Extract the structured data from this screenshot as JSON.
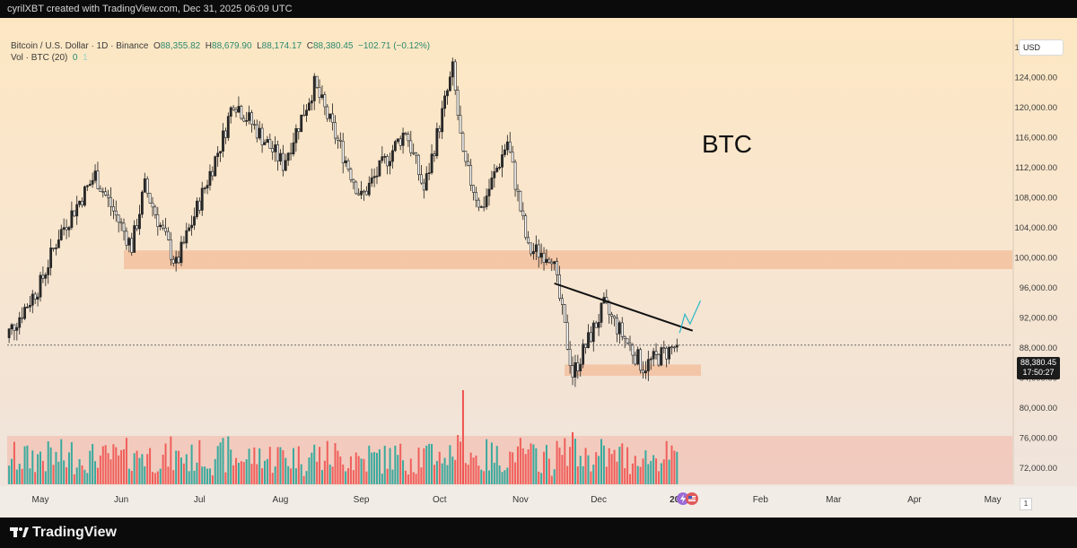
{
  "caption": "cyrilXBT created with TradingView.com, Dec 31, 2025 06:09 UTC",
  "legend": {
    "symbol_line": "Bitcoin / U.S. Dollar · 1D · Binance",
    "o_label": "O",
    "o_value": "88,355.82",
    "h_label": "H",
    "h_value": "88,679.90",
    "l_label": "L",
    "l_value": "88,174.17",
    "c_label": "C",
    "c_value": "88,380.45",
    "change": "−102.71 (−0.12%)",
    "vol_line": "Vol · BTC (20)",
    "vol_value": "0",
    "vol_value2": "1"
  },
  "currency": "USD",
  "annotation_text": "BTC",
  "last_price": {
    "price": "88,380.45",
    "timer": "17:50:27"
  },
  "scale_badge": "1",
  "brand": "TradingView",
  "colors": {
    "up": "#26a69a",
    "down": "#ef5350",
    "zone": "#f2b38c",
    "trendline": "#111111",
    "projection": "#29b6c8"
  },
  "icons": [
    "lightning-icon",
    "us-flag-icon",
    "tradingview-logo-icon"
  ],
  "chart_data": {
    "type": "candlestick",
    "title": "",
    "y_axis": {
      "ylim": [
        68000,
        129500
      ],
      "ticks": [
        72000,
        76000,
        80000,
        84000,
        88000,
        92000,
        96000,
        100000,
        104000,
        108000,
        112000,
        116000,
        120000,
        124000,
        128000
      ],
      "tick_labels": [
        "72,000.00",
        "76,000.00",
        "80,000.00",
        "84,000.00",
        "88,000.00",
        "92,000.00",
        "96,000.00",
        "100,000.00",
        "104,000.00",
        "108,000.00",
        "112,000.00",
        "116,000.00",
        "120,000.00",
        "124,000.00",
        "128,000.00"
      ]
    },
    "x_axis": {
      "ticks": [
        {
          "label": "May",
          "day": 0
        },
        {
          "label": "Jun",
          "day": 31
        },
        {
          "label": "Jul",
          "day": 61
        },
        {
          "label": "Aug",
          "day": 92
        },
        {
          "label": "Sep",
          "day": 123
        },
        {
          "label": "Oct",
          "day": 153
        },
        {
          "label": "Nov",
          "day": 184
        },
        {
          "label": "Dec",
          "day": 214
        },
        {
          "label": "2026",
          "day": 245
        },
        {
          "label": "Feb",
          "day": 276
        },
        {
          "label": "Mar",
          "day": 304
        },
        {
          "label": "Apr",
          "day": 335
        },
        {
          "label": "May",
          "day": 365
        }
      ]
    },
    "key_prices": [
      {
        "date": "2025-05-01",
        "close": 96500
      },
      {
        "date": "2025-05-08",
        "close": 103000
      },
      {
        "date": "2025-05-22",
        "close": 111000
      },
      {
        "date": "2025-06-05",
        "close": 101500
      },
      {
        "date": "2025-06-10",
        "close": 109500
      },
      {
        "date": "2025-06-22",
        "close": 99000
      },
      {
        "date": "2025-07-10",
        "close": 116000
      },
      {
        "date": "2025-07-14",
        "close": 121000
      },
      {
        "date": "2025-08-02",
        "close": 112500
      },
      {
        "date": "2025-08-14",
        "close": 123000
      },
      {
        "date": "2025-09-01",
        "close": 108000
      },
      {
        "date": "2025-09-18",
        "close": 117000
      },
      {
        "date": "2025-09-25",
        "close": 109000
      },
      {
        "date": "2025-10-06",
        "close": 125000
      },
      {
        "date": "2025-10-10",
        "close": 113000
      },
      {
        "date": "2025-10-17",
        "close": 106500
      },
      {
        "date": "2025-10-27",
        "close": 115500
      },
      {
        "date": "2025-11-04",
        "close": 101000
      },
      {
        "date": "2025-11-13",
        "close": 100500
      },
      {
        "date": "2025-11-21",
        "close": 84500
      },
      {
        "date": "2025-12-03",
        "close": 93500
      },
      {
        "date": "2025-12-18",
        "close": 85500
      },
      {
        "date": "2025-12-31",
        "close": 88380.45
      }
    ],
    "zones": [
      {
        "name": "support-resistance-zone",
        "from_day": 14,
        "to_day": 380,
        "low": 98500,
        "high": 101000
      },
      {
        "name": "demand-zone",
        "from_day": 200,
        "to_day": 246,
        "low": 84300,
        "high": 85800
      }
    ],
    "trendline": {
      "from": {
        "date": "2025-11-14",
        "price": 96600
      },
      "to": {
        "date": "2026-01-06",
        "price": 90300
      }
    },
    "projection": [
      {
        "date": "2026-01-01",
        "price": 90000
      },
      {
        "date": "2026-01-03",
        "price": 92500
      },
      {
        "date": "2026-01-05",
        "price": 91200
      },
      {
        "date": "2026-01-09",
        "price": 94300
      }
    ],
    "volume_zone_top": 76300,
    "last_close": 88380.45
  }
}
